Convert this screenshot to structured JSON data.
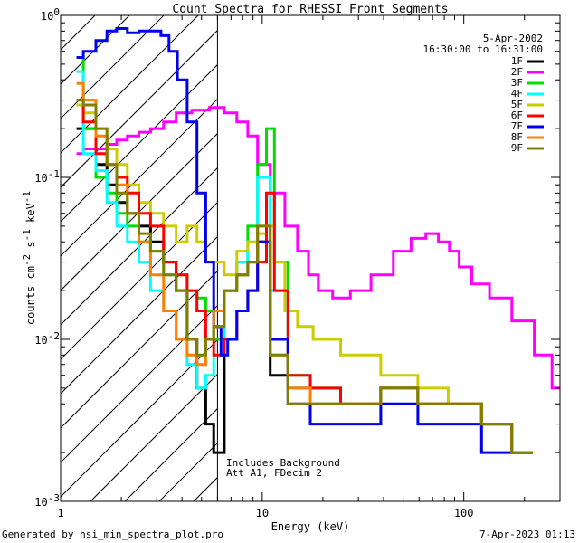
{
  "chart_data": {
    "type": "line",
    "title": "Count Spectra for RHESSI Front Segments",
    "xlabel": "Energy (keV)",
    "ylabel_parts": [
      "counts cm",
      "-2",
      " s",
      "-1",
      " keV",
      "-1"
    ],
    "xscale": "log",
    "yscale": "log",
    "xlim": [
      1.0,
      300
    ],
    "ylim": [
      0.001,
      1.0
    ],
    "x_ticks": [
      "1",
      "10",
      "100"
    ],
    "y_ticks": [
      {
        "base": "10",
        "exp": "-3"
      },
      {
        "base": "10",
        "exp": "-2"
      },
      {
        "base": "10",
        "exp": "-1"
      },
      {
        "base": "10",
        "exp": "0"
      }
    ],
    "attenuated_region_xmax_keV": 6,
    "annotations": {
      "date": "5-Apr-2002",
      "time_range": "16:30:00 to 16:31:00",
      "note1": "Includes Background",
      "note2": "Att A1, FDecim 2"
    },
    "footer_left": "Generated by hsi_min_spectra_plot.pro",
    "footer_right": "7-Apr-2023 01:13",
    "legend_position": "top-right",
    "series": [
      {
        "name": "1F",
        "color": "#000000",
        "x": [
          1.2,
          1.4,
          1.6,
          1.8,
          2.0,
          2.3,
          2.6,
          3.0,
          3.5,
          4.0,
          4.5,
          5.0,
          5.5,
          6.0,
          7,
          8,
          9,
          10,
          12,
          15,
          20,
          30,
          50,
          70,
          100,
          150,
          200
        ],
        "y": [
          0.2,
          0.2,
          0.12,
          0.09,
          0.07,
          0.06,
          0.05,
          0.04,
          0.03,
          0.02,
          0.01,
          0.005,
          0.003,
          0.002,
          0.02,
          0.025,
          0.03,
          0.04,
          0.006,
          0.005,
          0.004,
          0.004,
          0.005,
          0.004,
          0.004,
          0.003,
          0.002
        ]
      },
      {
        "name": "2F",
        "color": "#ff00ff",
        "x": [
          1.2,
          1.4,
          1.6,
          1.8,
          2.0,
          2.3,
          2.6,
          3.0,
          3.5,
          4.0,
          5.0,
          6.0,
          7,
          8,
          9,
          10,
          12,
          14,
          16,
          18,
          20,
          25,
          30,
          40,
          50,
          60,
          70,
          80,
          90,
          100,
          120,
          150,
          200,
          250,
          300
        ],
        "y": [
          0.14,
          0.15,
          0.15,
          0.16,
          0.17,
          0.18,
          0.19,
          0.2,
          0.22,
          0.25,
          0.26,
          0.27,
          0.25,
          0.22,
          0.18,
          0.12,
          0.08,
          0.05,
          0.035,
          0.025,
          0.02,
          0.018,
          0.02,
          0.025,
          0.035,
          0.042,
          0.045,
          0.04,
          0.035,
          0.028,
          0.022,
          0.018,
          0.013,
          0.008,
          0.005
        ]
      },
      {
        "name": "3F",
        "color": "#00dd00",
        "x": [
          1.2,
          1.4,
          1.6,
          1.8,
          2.0,
          2.3,
          2.6,
          3.0,
          3.5,
          4.0,
          4.5,
          5.0,
          5.5,
          6.0,
          7,
          8,
          9,
          10,
          11,
          12,
          15,
          20,
          30,
          50,
          70,
          100,
          150,
          200
        ],
        "y": [
          0.55,
          0.2,
          0.1,
          0.08,
          0.06,
          0.05,
          0.04,
          0.035,
          0.025,
          0.025,
          0.02,
          0.018,
          0.015,
          0.01,
          0.02,
          0.03,
          0.05,
          0.12,
          0.2,
          0.03,
          0.006,
          0.005,
          0.004,
          0.005,
          0.004,
          0.004,
          0.003,
          0.002
        ]
      },
      {
        "name": "4F",
        "color": "#00ffff",
        "x": [
          1.2,
          1.4,
          1.6,
          1.8,
          2.0,
          2.3,
          2.6,
          3.0,
          3.5,
          4.0,
          4.5,
          5.0,
          5.5,
          6.0,
          7,
          8,
          9,
          10,
          12,
          15,
          20,
          30,
          50,
          70,
          100,
          150,
          200
        ],
        "y": [
          0.45,
          0.14,
          0.11,
          0.07,
          0.05,
          0.04,
          0.03,
          0.02,
          0.015,
          0.01,
          0.007,
          0.005,
          0.006,
          0.008,
          0.02,
          0.03,
          0.04,
          0.1,
          0.02,
          0.005,
          0.004,
          0.004,
          0.005,
          0.004,
          0.004,
          0.003,
          0.002
        ]
      },
      {
        "name": "5F",
        "color": "#cccc00",
        "x": [
          1.2,
          1.4,
          1.6,
          1.8,
          2.0,
          2.3,
          2.6,
          3.0,
          3.5,
          4.0,
          4.5,
          5.0,
          5.5,
          6.0,
          7,
          8,
          9,
          10,
          11,
          12,
          14,
          16,
          20,
          30,
          50,
          70,
          100,
          150,
          200
        ],
        "y": [
          0.28,
          0.25,
          0.2,
          0.15,
          0.12,
          0.09,
          0.07,
          0.06,
          0.05,
          0.04,
          0.05,
          0.04,
          0.03,
          0.03,
          0.025,
          0.035,
          0.04,
          0.045,
          0.05,
          0.03,
          0.015,
          0.012,
          0.01,
          0.008,
          0.006,
          0.005,
          0.004,
          0.003,
          0.002
        ]
      },
      {
        "name": "6F",
        "color": "#ff0000",
        "x": [
          1.2,
          1.4,
          1.6,
          1.8,
          2.0,
          2.3,
          2.6,
          3.0,
          3.5,
          4.0,
          4.5,
          5.0,
          5.5,
          6.0,
          7,
          8,
          9,
          10,
          11,
          12,
          15,
          20,
          30,
          50,
          70,
          100,
          150,
          200
        ],
        "y": [
          0.3,
          0.22,
          0.14,
          0.12,
          0.1,
          0.08,
          0.06,
          0.05,
          0.03,
          0.025,
          0.02,
          0.015,
          0.01,
          0.008,
          0.01,
          0.015,
          0.02,
          0.03,
          0.08,
          0.02,
          0.006,
          0.005,
          0.004,
          0.005,
          0.004,
          0.004,
          0.003,
          0.002
        ]
      },
      {
        "name": "7F",
        "color": "#0000ee",
        "x": [
          1.2,
          1.4,
          1.6,
          1.8,
          2.0,
          2.3,
          2.6,
          3.0,
          3.3,
          3.6,
          4.0,
          4.5,
          5.0,
          5.5,
          6.0,
          6.5,
          7,
          8,
          9,
          10,
          12,
          15,
          20,
          30,
          50,
          70,
          100,
          150,
          200
        ],
        "y": [
          0.55,
          0.6,
          0.7,
          0.8,
          0.83,
          0.78,
          0.8,
          0.8,
          0.75,
          0.6,
          0.4,
          0.22,
          0.08,
          0.03,
          0.012,
          0.008,
          0.01,
          0.015,
          0.02,
          0.04,
          0.01,
          0.004,
          0.003,
          0.003,
          0.004,
          0.003,
          0.003,
          0.002,
          0.002
        ]
      },
      {
        "name": "8F",
        "color": "#ff8000",
        "x": [
          1.2,
          1.4,
          1.6,
          1.8,
          2.0,
          2.3,
          2.6,
          3.0,
          3.5,
          4.0,
          4.5,
          5.0,
          5.5,
          6.0,
          7,
          8,
          9,
          10,
          12,
          15,
          20,
          30,
          50,
          70,
          100,
          150,
          200
        ],
        "y": [
          0.38,
          0.3,
          0.18,
          0.12,
          0.09,
          0.06,
          0.04,
          0.025,
          0.015,
          0.01,
          0.008,
          0.007,
          0.01,
          0.015,
          0.02,
          0.025,
          0.03,
          0.05,
          0.008,
          0.005,
          0.004,
          0.004,
          0.005,
          0.004,
          0.004,
          0.003,
          0.002
        ]
      },
      {
        "name": "9F",
        "color": "#808000",
        "x": [
          1.2,
          1.4,
          1.6,
          1.8,
          2.0,
          2.3,
          2.6,
          3.0,
          3.5,
          4.0,
          4.5,
          5.0,
          5.5,
          6.0,
          7,
          8,
          9,
          10,
          12,
          15,
          20,
          30,
          50,
          70,
          100,
          150,
          200
        ],
        "y": [
          0.3,
          0.28,
          0.2,
          0.12,
          0.08,
          0.06,
          0.045,
          0.035,
          0.025,
          0.02,
          0.01,
          0.008,
          0.01,
          0.012,
          0.02,
          0.025,
          0.03,
          0.05,
          0.008,
          0.004,
          0.004,
          0.004,
          0.005,
          0.004,
          0.004,
          0.003,
          0.002
        ]
      }
    ]
  }
}
